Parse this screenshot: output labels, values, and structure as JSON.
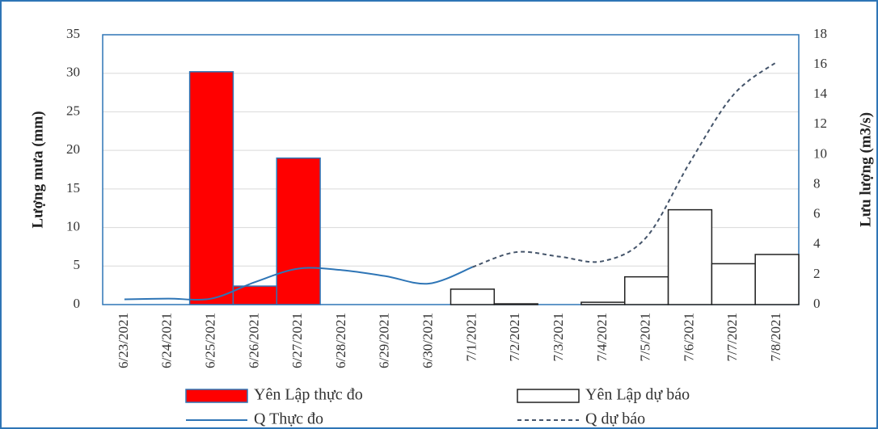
{
  "chart_data": {
    "type": "bar-line",
    "categories": [
      "6/23/2021",
      "6/24/2021",
      "6/25/2021",
      "6/26/2021",
      "6/27/2021",
      "6/28/2021",
      "6/29/2021",
      "6/30/2021",
      "7/1/2021",
      "7/2/2021",
      "7/3/2021",
      "7/4/2021",
      "7/5/2021",
      "7/6/2021",
      "7/7/2021",
      "7/8/2021"
    ],
    "ylabel": "Lượng mưa (mm)",
    "y2label": "Lưu lượng (m3/s)",
    "ylim": [
      0,
      35
    ],
    "yticks": [
      0,
      5,
      10,
      15,
      20,
      25,
      30,
      35
    ],
    "y2lim": [
      0,
      18
    ],
    "y2ticks": [
      0,
      2,
      4,
      6,
      8,
      10,
      12,
      14,
      16,
      18
    ],
    "grid": true,
    "legend": "bottom",
    "series": [
      {
        "name": "Yên Lập thực đo",
        "kind": "bar",
        "color": "#ff0000",
        "values": [
          null,
          null,
          30.2,
          2.4,
          19,
          null,
          null,
          null,
          null,
          null,
          null,
          null,
          null,
          null,
          null,
          null
        ]
      },
      {
        "name": "Yên Lập dự báo",
        "kind": "bar",
        "color": "#ffffff",
        "values": [
          null,
          null,
          null,
          null,
          null,
          null,
          null,
          null,
          2,
          0.1,
          0,
          0.3,
          3.6,
          12.3,
          5.3,
          6.5
        ]
      },
      {
        "name": "Q Thực đo",
        "kind": "line",
        "axis": "y2",
        "color": "#2e75b6",
        "dash": false,
        "values": [
          0.35,
          0.4,
          0.4,
          1.5,
          2.4,
          2.3,
          1.9,
          1.4,
          2.5,
          null,
          null,
          null,
          null,
          null,
          null,
          null
        ]
      },
      {
        "name": "Q dự báo",
        "kind": "line",
        "axis": "y2",
        "color": "#44546a",
        "dash": true,
        "values": [
          null,
          null,
          null,
          null,
          null,
          null,
          null,
          null,
          2.5,
          3.5,
          3.2,
          2.9,
          4.5,
          9.5,
          14,
          16.2
        ]
      }
    ]
  }
}
